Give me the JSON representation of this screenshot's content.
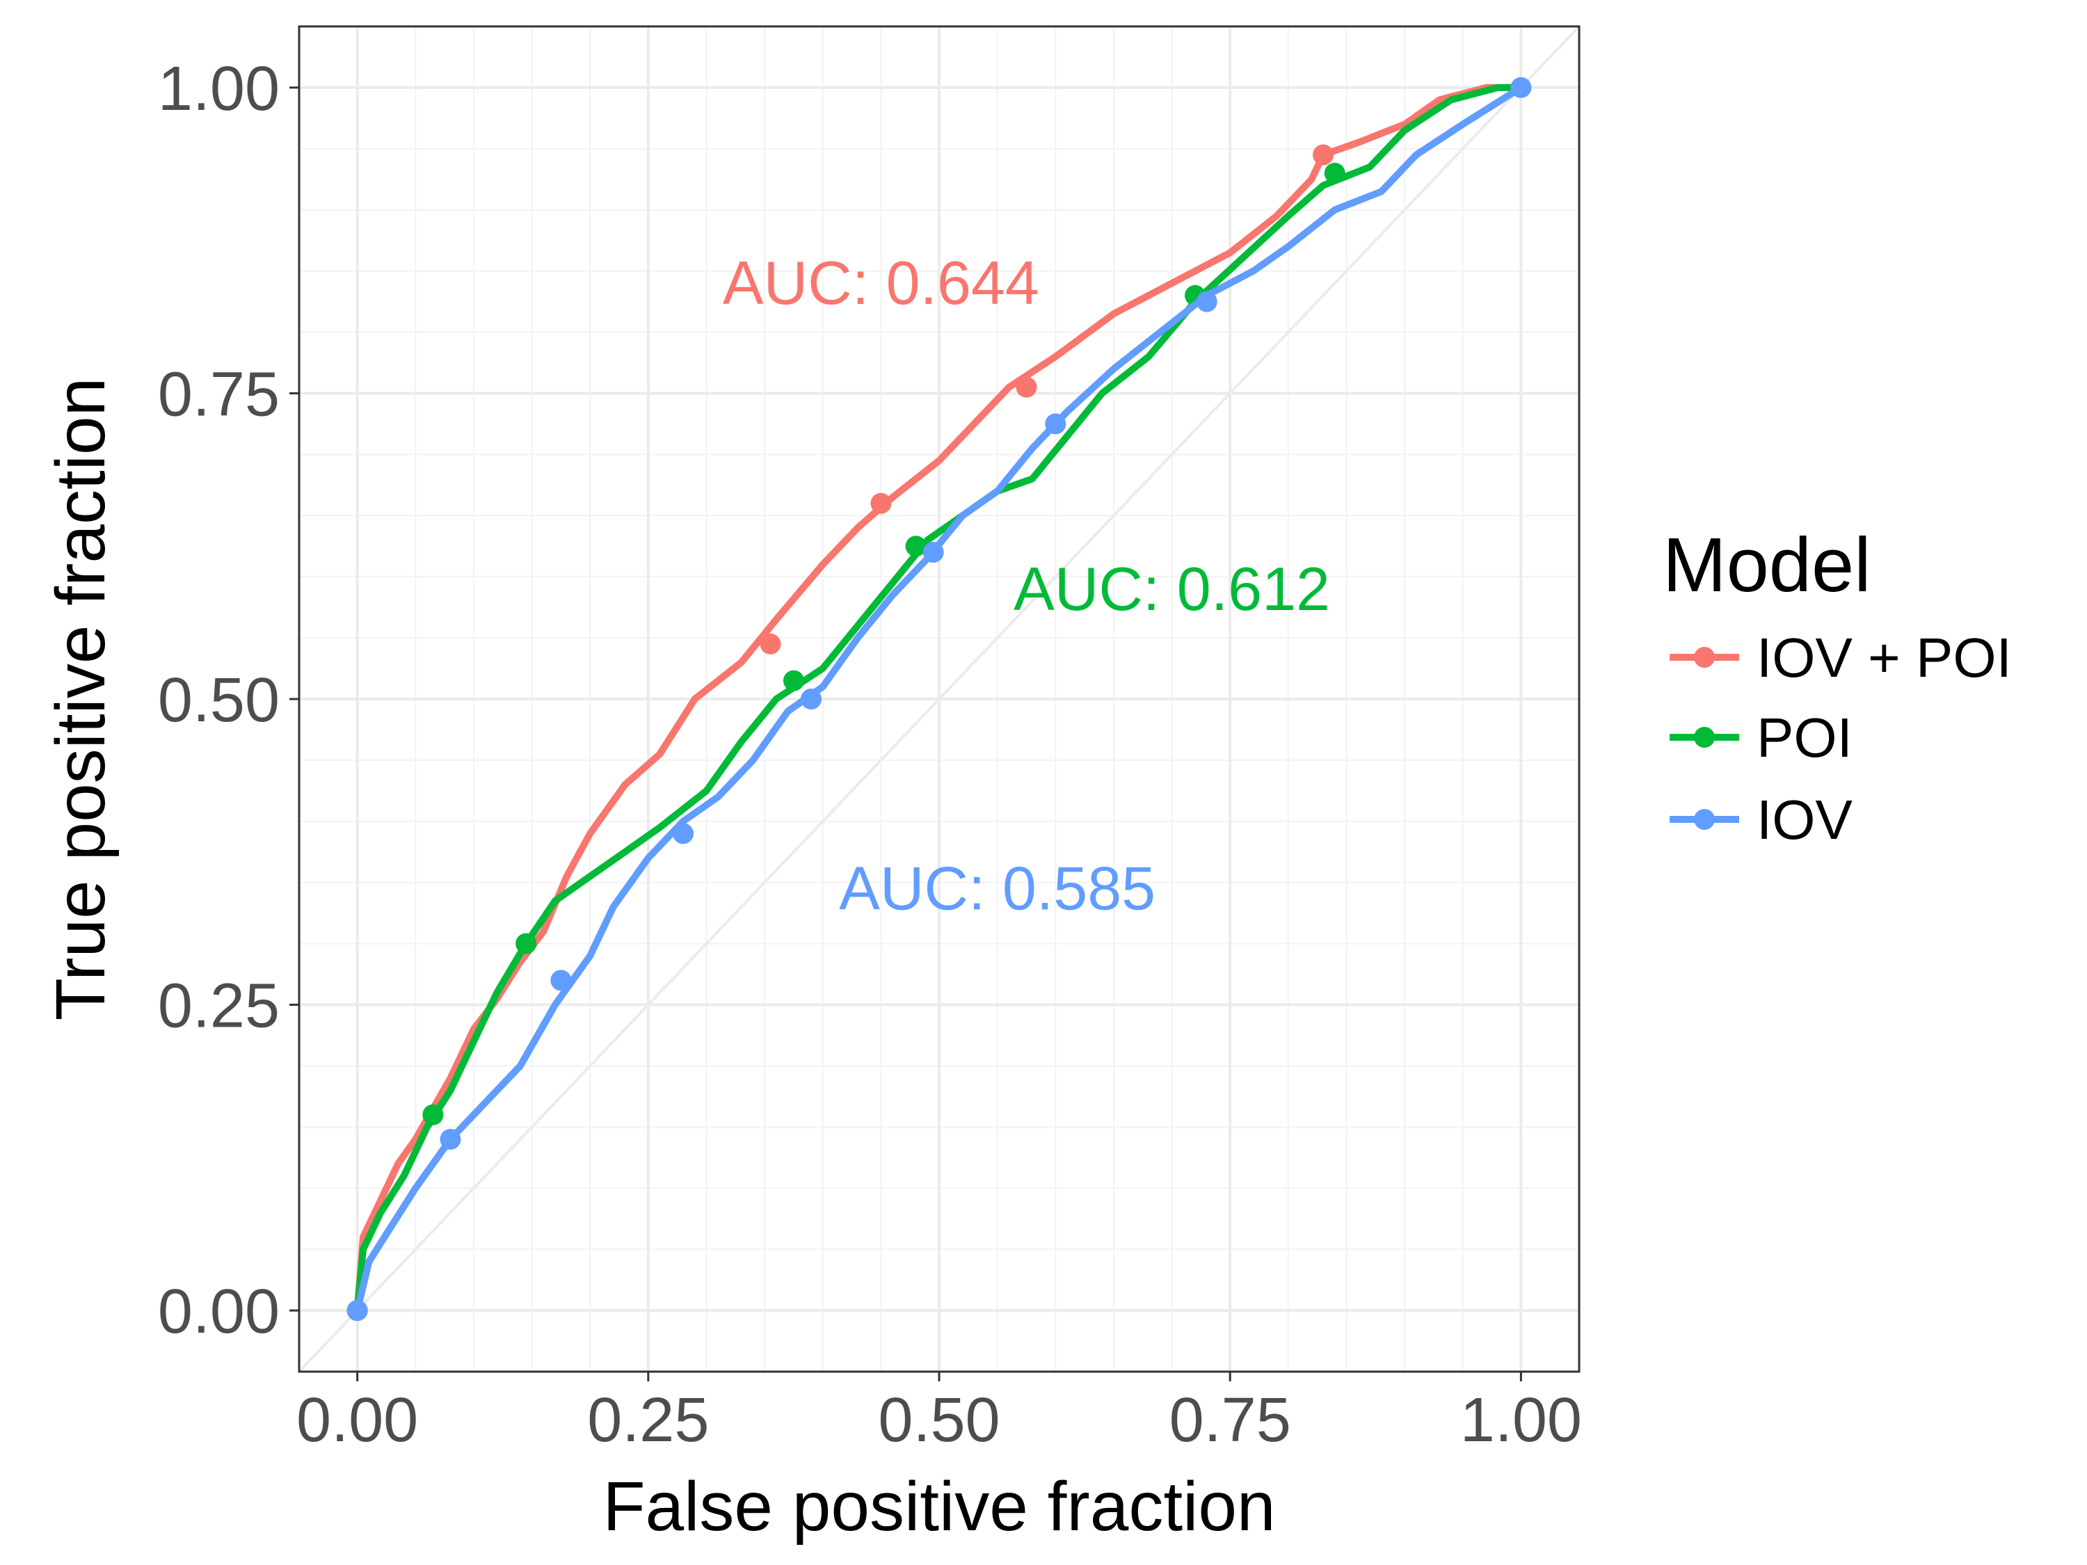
{
  "chart_data": {
    "type": "line",
    "title": "",
    "xlabel": "False positive fraction",
    "ylabel": "True positive fraction",
    "xlim": [
      -0.05,
      1.05
    ],
    "ylim": [
      -0.05,
      1.05
    ],
    "x_ticks": [
      "0.00",
      "0.25",
      "0.50",
      "0.75",
      "1.00"
    ],
    "y_ticks": [
      "0.00",
      "0.25",
      "0.50",
      "0.75",
      "1.00"
    ],
    "grid": true,
    "diagonal_reference": true,
    "legend": {
      "title": "Model",
      "position": "right"
    },
    "series": [
      {
        "name": "IOV + POI",
        "color": "#F8766D",
        "auc_label": "AUC: 0.644",
        "auc_pos": [
          0.45,
          0.84
        ],
        "points": [
          [
            0,
            0
          ],
          [
            0.005,
            0.06
          ],
          [
            0.02,
            0.09
          ],
          [
            0.035,
            0.12
          ],
          [
            0.05,
            0.14
          ],
          [
            0.065,
            0.165
          ],
          [
            0.08,
            0.19
          ],
          [
            0.1,
            0.23
          ],
          [
            0.12,
            0.255
          ],
          [
            0.14,
            0.285
          ],
          [
            0.16,
            0.31
          ],
          [
            0.18,
            0.355
          ],
          [
            0.2,
            0.39
          ],
          [
            0.23,
            0.43
          ],
          [
            0.26,
            0.455
          ],
          [
            0.29,
            0.5
          ],
          [
            0.33,
            0.53
          ],
          [
            0.36,
            0.565
          ],
          [
            0.4,
            0.61
          ],
          [
            0.43,
            0.64
          ],
          [
            0.46,
            0.665
          ],
          [
            0.5,
            0.695
          ],
          [
            0.53,
            0.725
          ],
          [
            0.56,
            0.755
          ],
          [
            0.6,
            0.78
          ],
          [
            0.65,
            0.815
          ],
          [
            0.7,
            0.84
          ],
          [
            0.75,
            0.865
          ],
          [
            0.79,
            0.895
          ],
          [
            0.82,
            0.925
          ],
          [
            0.83,
            0.945
          ],
          [
            0.86,
            0.955
          ],
          [
            0.9,
            0.97
          ],
          [
            0.93,
            0.99
          ],
          [
            0.97,
            1.0
          ],
          [
            1.0,
            1.0
          ]
        ],
        "markers": [
          [
            0,
            0
          ],
          [
            0.355,
            0.545
          ],
          [
            0.45,
            0.66
          ],
          [
            0.575,
            0.755
          ],
          [
            0.83,
            0.945
          ]
        ]
      },
      {
        "name": "POI",
        "color": "#00BA38",
        "auc_label": "AUC: 0.612",
        "auc_pos": [
          0.7,
          0.59
        ],
        "points": [
          [
            0,
            0
          ],
          [
            0.005,
            0.05
          ],
          [
            0.02,
            0.08
          ],
          [
            0.04,
            0.11
          ],
          [
            0.06,
            0.15
          ],
          [
            0.08,
            0.18
          ],
          [
            0.1,
            0.22
          ],
          [
            0.12,
            0.26
          ],
          [
            0.145,
            0.3
          ],
          [
            0.17,
            0.335
          ],
          [
            0.2,
            0.355
          ],
          [
            0.23,
            0.375
          ],
          [
            0.26,
            0.395
          ],
          [
            0.3,
            0.425
          ],
          [
            0.33,
            0.465
          ],
          [
            0.36,
            0.5
          ],
          [
            0.4,
            0.525
          ],
          [
            0.43,
            0.56
          ],
          [
            0.46,
            0.595
          ],
          [
            0.49,
            0.63
          ],
          [
            0.52,
            0.65
          ],
          [
            0.55,
            0.67
          ],
          [
            0.58,
            0.68
          ],
          [
            0.61,
            0.715
          ],
          [
            0.64,
            0.75
          ],
          [
            0.68,
            0.78
          ],
          [
            0.72,
            0.825
          ],
          [
            0.76,
            0.86
          ],
          [
            0.8,
            0.895
          ],
          [
            0.83,
            0.92
          ],
          [
            0.87,
            0.935
          ],
          [
            0.9,
            0.965
          ],
          [
            0.94,
            0.99
          ],
          [
            0.98,
            1.0
          ],
          [
            1.0,
            1.0
          ]
        ],
        "markers": [
          [
            0,
            0
          ],
          [
            0.065,
            0.16
          ],
          [
            0.145,
            0.3
          ],
          [
            0.375,
            0.515
          ],
          [
            0.48,
            0.625
          ],
          [
            0.72,
            0.83
          ],
          [
            0.84,
            0.93
          ]
        ]
      },
      {
        "name": "IOV",
        "color": "#619CFF",
        "auc_label": "AUC: 0.585",
        "auc_pos": [
          0.55,
          0.345
        ],
        "points": [
          [
            0,
            0
          ],
          [
            0.01,
            0.04
          ],
          [
            0.03,
            0.07
          ],
          [
            0.05,
            0.1
          ],
          [
            0.08,
            0.14
          ],
          [
            0.11,
            0.17
          ],
          [
            0.14,
            0.2
          ],
          [
            0.17,
            0.25
          ],
          [
            0.2,
            0.29
          ],
          [
            0.22,
            0.33
          ],
          [
            0.25,
            0.37
          ],
          [
            0.28,
            0.4
          ],
          [
            0.31,
            0.42
          ],
          [
            0.34,
            0.45
          ],
          [
            0.37,
            0.49
          ],
          [
            0.4,
            0.51
          ],
          [
            0.43,
            0.55
          ],
          [
            0.46,
            0.585
          ],
          [
            0.49,
            0.615
          ],
          [
            0.52,
            0.65
          ],
          [
            0.55,
            0.67
          ],
          [
            0.58,
            0.705
          ],
          [
            0.61,
            0.735
          ],
          [
            0.65,
            0.77
          ],
          [
            0.69,
            0.8
          ],
          [
            0.73,
            0.83
          ],
          [
            0.77,
            0.85
          ],
          [
            0.8,
            0.87
          ],
          [
            0.84,
            0.9
          ],
          [
            0.88,
            0.915
          ],
          [
            0.91,
            0.945
          ],
          [
            0.95,
            0.97
          ],
          [
            1.0,
            1.0
          ]
        ],
        "markers": [
          [
            0,
            0
          ],
          [
            0.08,
            0.14
          ],
          [
            0.175,
            0.27
          ],
          [
            0.28,
            0.39
          ],
          [
            0.39,
            0.5
          ],
          [
            0.495,
            0.62
          ],
          [
            0.6,
            0.725
          ],
          [
            0.73,
            0.825
          ],
          [
            1.0,
            1.0
          ]
        ]
      }
    ]
  }
}
